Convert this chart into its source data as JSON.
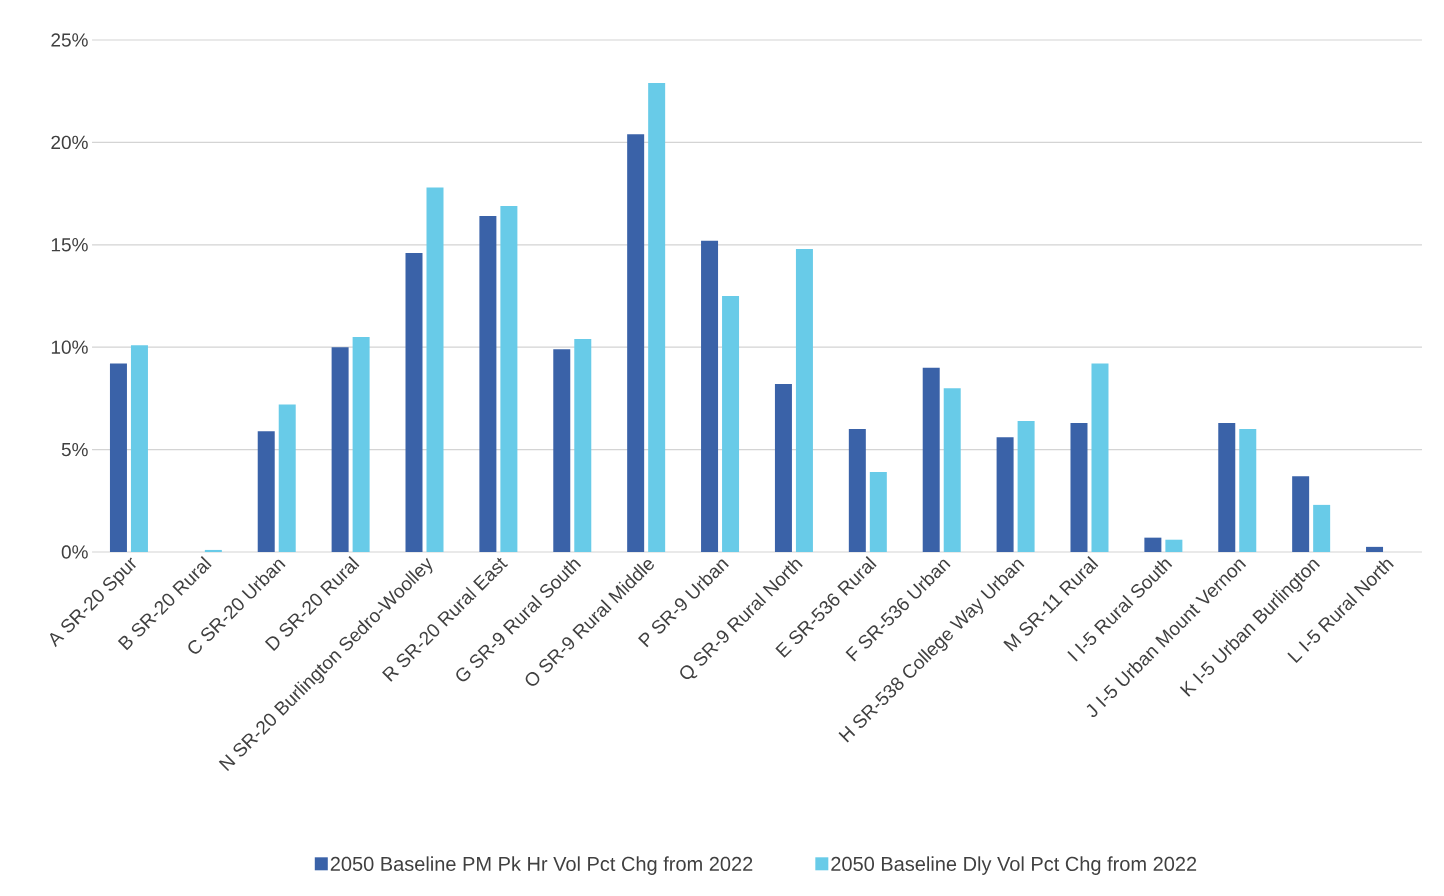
{
  "chart_data": {
    "type": "bar",
    "categories": [
      "A SR-20 Spur",
      "B SR-20 Rural",
      "C SR-20 Urban",
      "D SR-20 Rural",
      "N SR-20 Burlington Sedro-Woolley",
      "R SR-20 Rural East",
      "G SR-9 Rural South",
      "O SR-9 Rural Middle",
      "P SR-9 Urban",
      "Q SR-9 Rural North",
      "E SR-536 Rural",
      "F SR-536 Urban",
      "H SR-538 College Way Urban",
      "M SR-11 Rural",
      "I I-5 Rural South",
      "J I-5 Urban Mount Vernon",
      "K I-5 Urban Burlington",
      "L I-5 Rural North"
    ],
    "series": [
      {
        "name": "2050 Baseline PM Pk Hr Vol Pct Chg from 2022",
        "color": "#3a62a8",
        "values": [
          9.2,
          0,
          5.9,
          10.0,
          14.6,
          16.4,
          9.9,
          20.4,
          15.2,
          8.2,
          6.0,
          9.0,
          5.6,
          6.3,
          0.7,
          6.3,
          3.7,
          0.25
        ]
      },
      {
        "name": "2050 Baseline Dly Vol Pct Chg from 2022",
        "color": "#68cbe8",
        "values": [
          10.1,
          0.1,
          7.2,
          10.5,
          17.8,
          16.9,
          10.4,
          22.9,
          12.5,
          14.8,
          3.9,
          8.0,
          6.4,
          9.2,
          0.6,
          6.0,
          2.3,
          0
        ]
      }
    ],
    "ylim": [
      0,
      25
    ],
    "yticks": [
      {
        "value": 0,
        "label": "0%"
      },
      {
        "value": 5,
        "label": "5%"
      },
      {
        "value": 10,
        "label": "10%"
      },
      {
        "value": 15,
        "label": "15%"
      },
      {
        "value": 20,
        "label": "20%"
      },
      {
        "value": 25,
        "label": "25%"
      }
    ],
    "grid": "y",
    "legend": "bottom"
  }
}
